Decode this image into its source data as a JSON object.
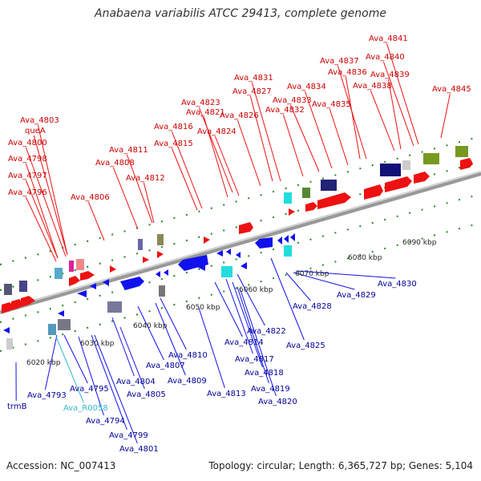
{
  "title": "Anabaena variabilis ATCC 29413, complete genome",
  "footer": {
    "accession": "Accession: NC_007413",
    "topology": "Topology: circular; Length: 6,365,727 bp; Genes: 5,104"
  },
  "colors": {
    "forward": "#ee1111",
    "reverse": "#1111ee",
    "backbone": "#999999",
    "tick": "#228822"
  },
  "kbp_ticks": [
    "6020 kbp",
    "6030 kbp",
    "6040 kbp",
    "6050 kbp",
    "6060 kbp",
    "6070 kbp",
    "6080 kbp",
    "6090 kbp"
  ],
  "top_labels": [
    "Ava_4841",
    "Ava_4840",
    "Ava_4837",
    "Ava_4839",
    "Ava_4836",
    "Ava_4838",
    "Ava_4831",
    "Ava_4834",
    "Ava_4845",
    "Ava_4827",
    "Ava_4833",
    "Ava_4823",
    "Ava_4835",
    "Ava_4821",
    "Ava_4832",
    "Ava_4826",
    "Ava_4803",
    "Ava_4816",
    "Ava_4824",
    "queA",
    "Ava_4800",
    "Ava_4815",
    "Ava_4811",
    "Ava_4798",
    "Ava_4808",
    "Ava_4797",
    "Ava_4812",
    "Ava_4796",
    "Ava_4806"
  ],
  "bottom_labels": [
    "Ava_4830",
    "Ava_4829",
    "Ava_4828",
    "Ava_4822",
    "Ava_4825",
    "Ava_4814",
    "Ava_4810",
    "Ava_4817",
    "Ava_4807",
    "Ava_4818",
    "Ava_4809",
    "Ava_4804",
    "Ava_4819",
    "Ava_4805",
    "Ava_4813",
    "Ava_4793",
    "Ava_4795",
    "Ava_4820",
    "trmB",
    "Ava_R0058",
    "Ava_4794",
    "Ava_4799",
    "Ava_4801"
  ]
}
